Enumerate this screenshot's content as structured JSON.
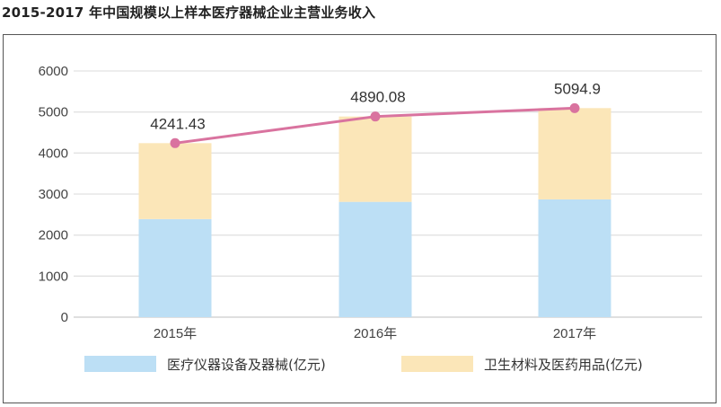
{
  "title": "2015-2017 年中国规模以上样本医疗器械企业主营业务收入",
  "chart_data": {
    "type": "bar",
    "stacked": true,
    "categories": [
      "2015年",
      "2016年",
      "2017年"
    ],
    "series": [
      {
        "name": "医疗仪器设备及器械(亿元)",
        "values": [
          2390,
          2810,
          2870
        ],
        "color": "#bcdff5"
      },
      {
        "name": "卫生材料及医药用品(亿元)",
        "values": [
          1851,
          2080,
          2225
        ],
        "color": "#fbe6b8"
      }
    ],
    "line": {
      "values": [
        4241.43,
        4890.08,
        5094.9
      ],
      "labels": [
        "4241.43",
        "4890.08",
        "5094.9"
      ],
      "color": "#d9739f"
    },
    "yticks": [
      "0",
      "1000",
      "2000",
      "3000",
      "4000",
      "5000",
      "6000"
    ],
    "ylim": [
      0,
      6000
    ],
    "grid": true,
    "legend": "bottom"
  }
}
